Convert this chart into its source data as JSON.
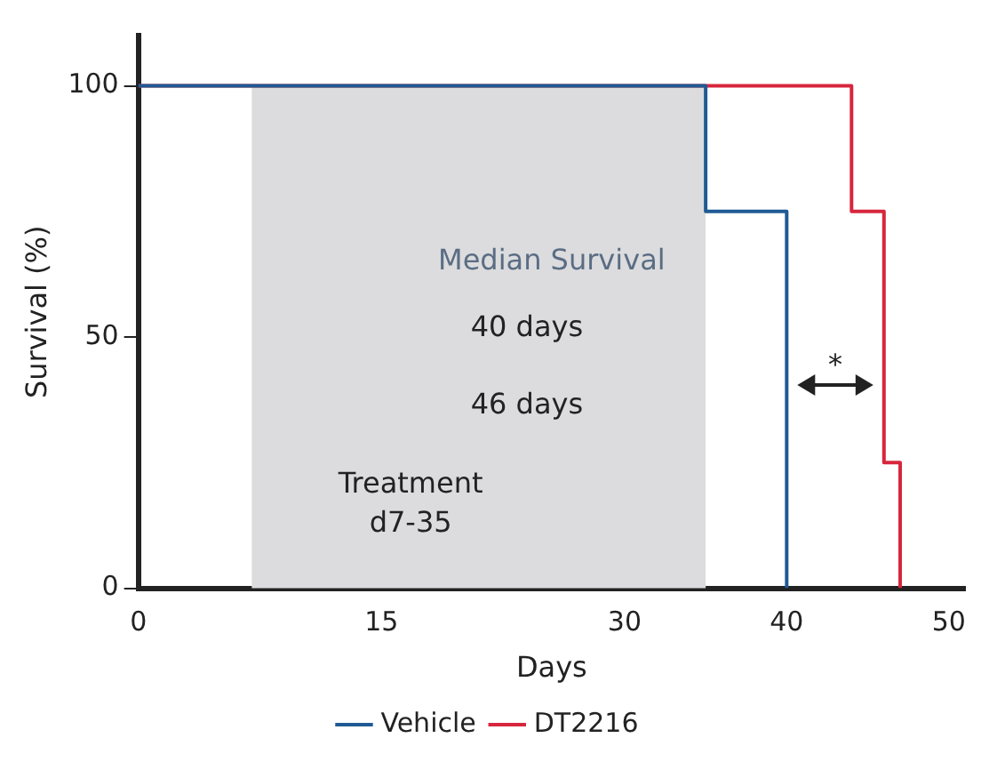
{
  "chart_data": {
    "type": "step",
    "xlabel": "Days",
    "ylabel": "Survival (%)",
    "xlim": [
      0,
      51
    ],
    "xticks": [
      0,
      15,
      30,
      40,
      50
    ],
    "ylim": [
      0,
      110
    ],
    "yticks": [
      0,
      50,
      100
    ],
    "grid": false,
    "legend": "bottom",
    "series": [
      {
        "name": "Vehicle",
        "color": "#1f5a94",
        "x": [
          0,
          35,
          40
        ],
        "values": [
          100,
          75,
          0
        ]
      },
      {
        "name": "DT2216",
        "color": "#d7263d",
        "x": [
          0,
          44,
          46,
          47
        ],
        "values": [
          100,
          75,
          25,
          0
        ]
      }
    ],
    "bands": [
      {
        "axis": "x",
        "from": 7,
        "to": 35,
        "label": "Treatment\nd7-35",
        "color": "#dcdcde"
      }
    ],
    "annotations": [
      "Median Survival",
      "40 days",
      "46 days",
      "*"
    ]
  }
}
